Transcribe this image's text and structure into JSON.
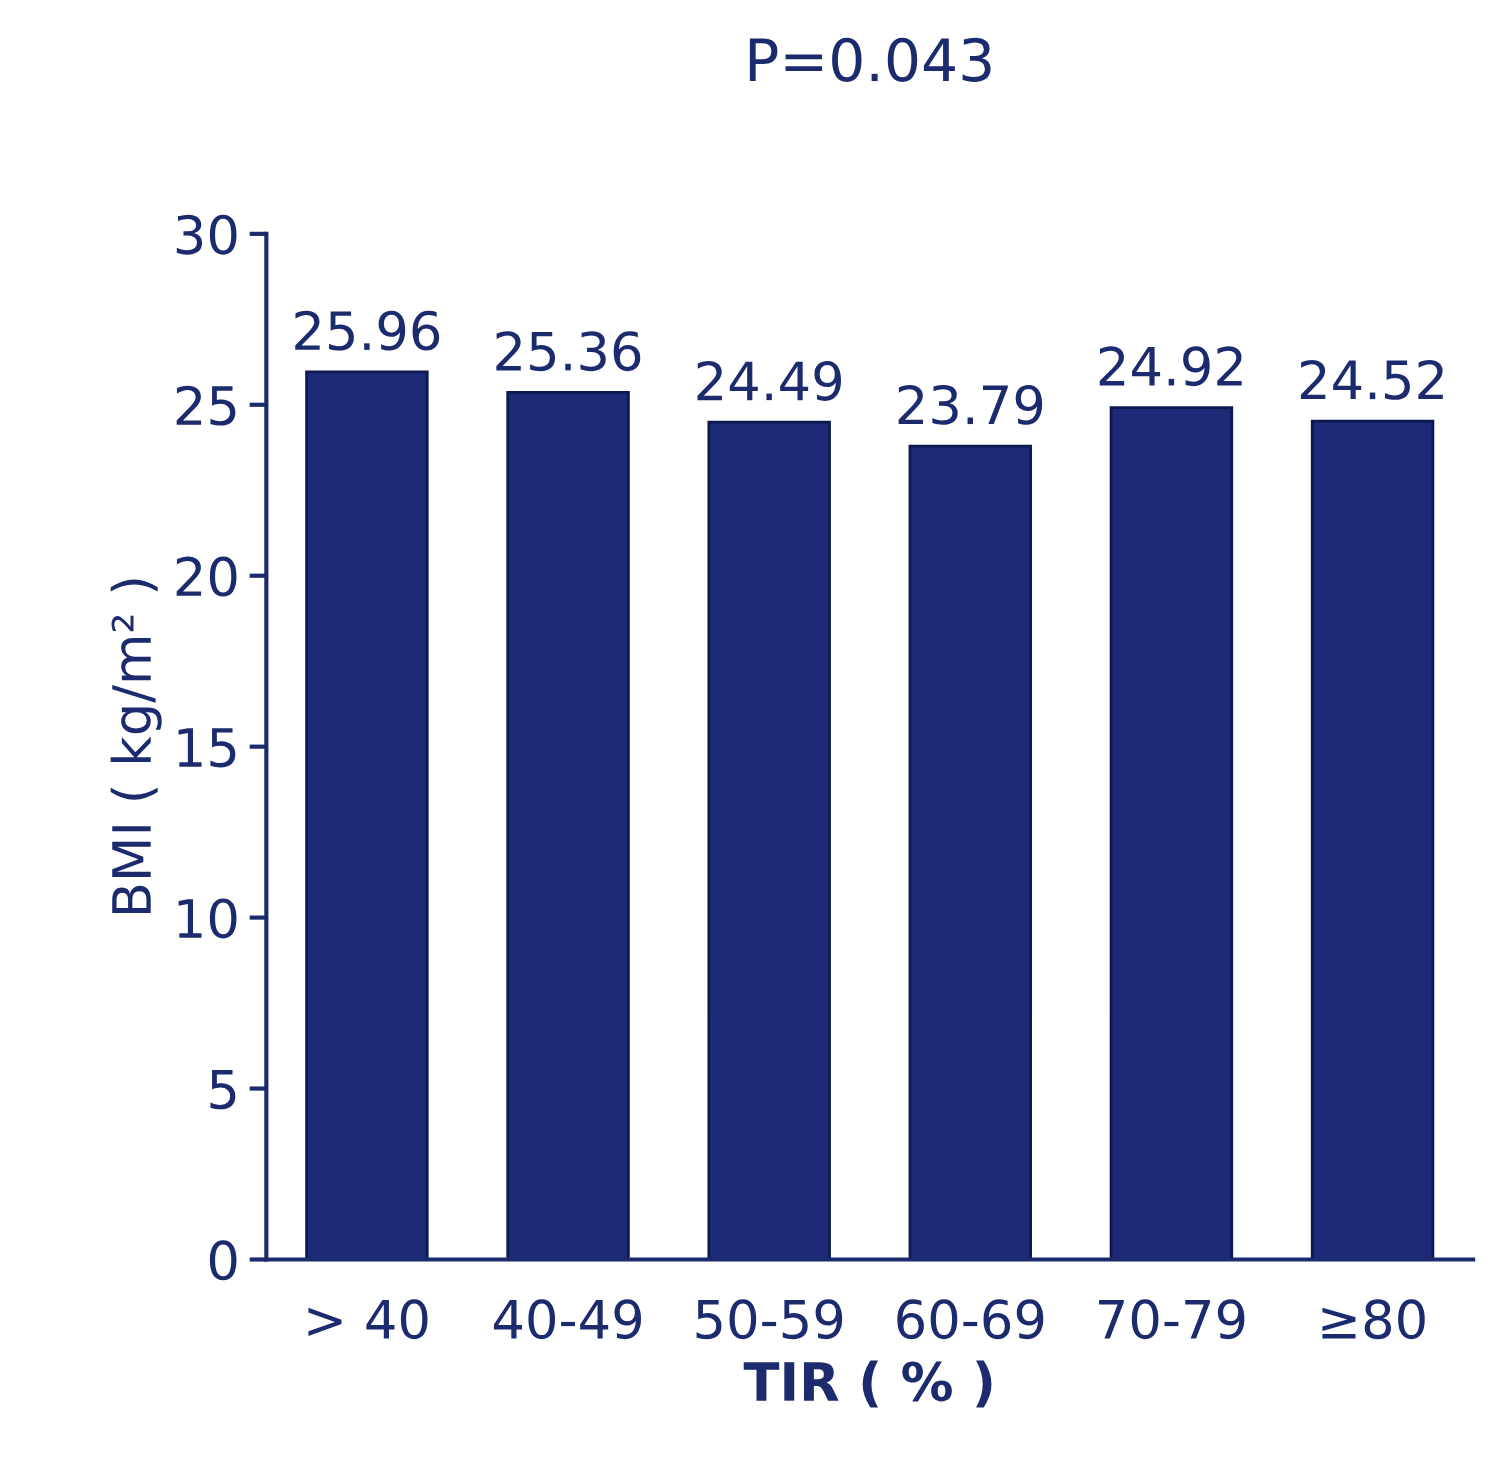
{
  "chart_data": {
    "type": "bar",
    "title": "P=0.043",
    "xlabel": "TIR ( % )",
    "ylabel": "BMI ( kg/m² )",
    "categories": [
      "> 40",
      "40-49",
      "50-59",
      "60-69",
      "70-79",
      "≥80"
    ],
    "values": [
      25.96,
      25.36,
      24.49,
      23.79,
      24.92,
      24.52
    ],
    "color": "#1c2a78",
    "ylim": [
      0,
      30
    ],
    "yticks": [
      0,
      5,
      10,
      15,
      20,
      25,
      30
    ],
    "grid": false,
    "data_labels": true
  }
}
